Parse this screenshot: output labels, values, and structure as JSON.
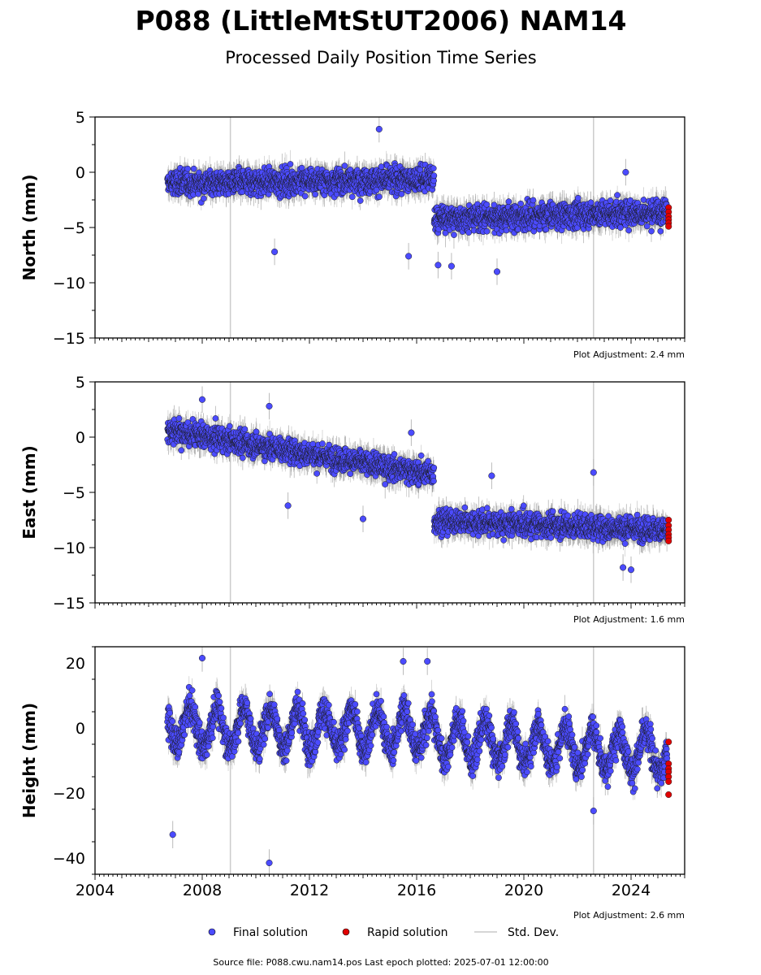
{
  "title": "P088 (LittleMtStUT2006) NAM14",
  "subtitle": "Processed Daily Position Time Series",
  "source_note": "Source file: P088.cwu.nam14.pos  Last epoch plotted: 2025-07-01 12:00:00",
  "legend": {
    "final": "Final solution",
    "rapid": "Rapid solution",
    "stddev": "Std. Dev."
  },
  "colors": {
    "final_fill": "#4b4bff",
    "rapid_fill": "#e00000",
    "stddev": "#b0b0b0",
    "axis": "#000000"
  },
  "chart_data": [
    {
      "type": "scatter",
      "ylabel": "North (mm)",
      "ylim": [
        -15,
        5
      ],
      "yticks": [
        5,
        0,
        -5,
        -10,
        -15
      ],
      "xlim": [
        2004,
        2026
      ],
      "adjustment": "Plot Adjustment: 2.4 mm",
      "series": [
        {
          "name": "Final solution",
          "segments": [
            {
              "x_start": 2006.7,
              "x_end": 2016.65,
              "mean_start": -1.0,
              "mean_end": -0.6,
              "spread": 1.1
            },
            {
              "x_start": 2016.65,
              "x_end": 2025.35,
              "mean_start": -4.2,
              "mean_end": -3.6,
              "spread": 1.1
            }
          ]
        },
        {
          "name": "Rapid solution",
          "x": [
            2025.4,
            2025.4,
            2025.4,
            2025.4,
            2025.4,
            2025.4
          ],
          "y": [
            -3.2,
            -3.6,
            -4.0,
            -4.3,
            -4.6,
            -4.9
          ]
        }
      ],
      "outliers": [
        {
          "x": 2014.6,
          "y": 3.9
        },
        {
          "x": 2010.7,
          "y": -7.2
        },
        {
          "x": 2015.7,
          "y": -7.6
        },
        {
          "x": 2019.0,
          "y": -9.0
        },
        {
          "x": 2016.8,
          "y": -8.4
        },
        {
          "x": 2017.3,
          "y": -8.5
        },
        {
          "x": 2023.8,
          "y": 0.0
        }
      ]
    },
    {
      "type": "scatter",
      "ylabel": "East (mm)",
      "ylim": [
        -15,
        5
      ],
      "yticks": [
        5,
        0,
        -5,
        -10,
        -15
      ],
      "xlim": [
        2004,
        2026
      ],
      "adjustment": "Plot Adjustment: 1.6 mm",
      "series": [
        {
          "name": "Final solution",
          "segments": [
            {
              "x_start": 2006.7,
              "x_end": 2016.65,
              "mean_start": 0.6,
              "mean_end": -3.4,
              "spread": 1.0
            },
            {
              "x_start": 2016.65,
              "x_end": 2025.35,
              "mean_start": -7.6,
              "mean_end": -8.4,
              "spread": 1.0
            }
          ]
        },
        {
          "name": "Rapid solution",
          "x": [
            2025.4,
            2025.4,
            2025.4,
            2025.4,
            2025.4,
            2025.4
          ],
          "y": [
            -7.5,
            -8.0,
            -8.4,
            -8.8,
            -9.1,
            -9.4
          ]
        }
      ],
      "outliers": [
        {
          "x": 2008.0,
          "y": 3.4
        },
        {
          "x": 2010.5,
          "y": 2.8
        },
        {
          "x": 2011.2,
          "y": -6.2
        },
        {
          "x": 2014.0,
          "y": -7.4
        },
        {
          "x": 2015.8,
          "y": 0.4
        },
        {
          "x": 2018.8,
          "y": -3.5
        },
        {
          "x": 2022.6,
          "y": -3.2
        },
        {
          "x": 2024.0,
          "y": -12.0
        },
        {
          "x": 2023.7,
          "y": -11.8
        }
      ]
    },
    {
      "type": "scatter",
      "ylabel": "Height (mm)",
      "ylim": [
        -45,
        25
      ],
      "yticks": [
        20,
        0,
        -20,
        -40
      ],
      "xlim": [
        2004,
        2026
      ],
      "xticks": [
        2004,
        2008,
        2012,
        2016,
        2020,
        2024
      ],
      "adjustment": "Plot Adjustment: 2.6 mm",
      "seasonal_amplitude": 6,
      "series": [
        {
          "name": "Final solution",
          "segments": [
            {
              "x_start": 2006.7,
              "x_end": 2016.65,
              "mean_start": 0.5,
              "mean_end": -1.0,
              "spread": 4.5
            },
            {
              "x_start": 2016.65,
              "x_end": 2025.35,
              "mean_start": -3.0,
              "mean_end": -8.0,
              "spread": 4.5
            }
          ]
        },
        {
          "name": "Rapid solution",
          "x": [
            2025.4,
            2025.4,
            2025.4,
            2025.4,
            2025.4,
            2025.4,
            2025.4
          ],
          "y": [
            -4.3,
            -11.0,
            -12.5,
            -13.5,
            -15.0,
            -16.5,
            -20.5
          ]
        }
      ],
      "outliers": [
        {
          "x": 2006.9,
          "y": -32.8
        },
        {
          "x": 2010.5,
          "y": -41.5
        },
        {
          "x": 2022.6,
          "y": -25.5
        },
        {
          "x": 2008.0,
          "y": 21.5
        },
        {
          "x": 2015.5,
          "y": 20.5
        },
        {
          "x": 2016.4,
          "y": 20.5
        }
      ]
    }
  ],
  "tall_bars": [
    2009.05,
    2022.6
  ]
}
